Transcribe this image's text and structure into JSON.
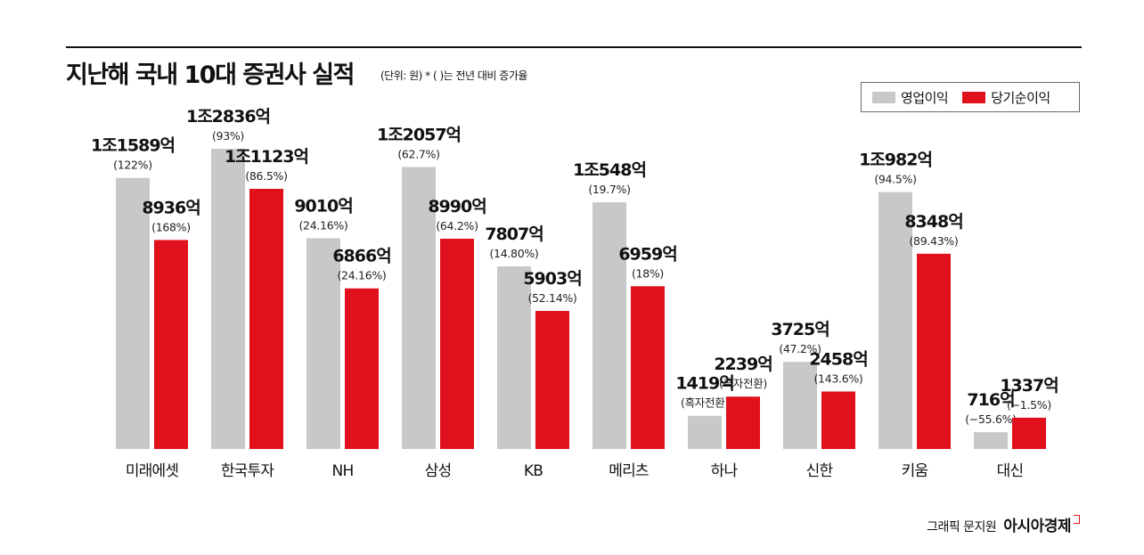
{
  "header": {
    "title": "지난해 국내 10대 증권사 실적",
    "unit_note": "(단위: 원)  * ( )는 전년 대비 증가율"
  },
  "legend": {
    "items": [
      {
        "label": "영업이익",
        "color": "#c8c8ca"
      },
      {
        "label": "당기순이익",
        "color": "#e0111c"
      }
    ]
  },
  "footer": {
    "credit": "그래픽 문지원",
    "brand": "아시아경제"
  },
  "chart_data": {
    "type": "bar",
    "title": "지난해 국내 10대 증권사 실적",
    "unit": "원",
    "categories": [
      "미래에셋",
      "한국투자",
      "NH",
      "삼성",
      "KB",
      "메리츠",
      "하나",
      "신한",
      "키움",
      "대신"
    ],
    "series": [
      {
        "name": "영업이익",
        "color": "#c8c8ca",
        "values_eok": [
          11589,
          12836,
          9010,
          12057,
          7807,
          10548,
          1419,
          3725,
          10982,
          716
        ],
        "labels": [
          "1조1589억",
          "1조2836억",
          "9010억",
          "1조2057억",
          "7807억",
          "1조548억",
          "1419억",
          "3725억",
          "1조982억",
          "716억"
        ],
        "changes": [
          "(122%)",
          "(93%)",
          "(24.16%)",
          "(62.7%)",
          "(14.80%)",
          "(19.7%)",
          "(흑자전환)",
          "(47.2%)",
          "(94.5%)",
          "(−55.6%)"
        ]
      },
      {
        "name": "당기순이익",
        "color": "#e0111c",
        "values_eok": [
          8936,
          11123,
          6866,
          8990,
          5903,
          6959,
          2239,
          2458,
          8348,
          1337
        ],
        "labels": [
          "8936억",
          "1조1123억",
          "6866억",
          "8990억",
          "5903억",
          "6959억",
          "2239억",
          "2458억",
          "8348억",
          "1337억"
        ],
        "changes": [
          "(168%)",
          "(86.5%)",
          "(24.16%)",
          "(64.2%)",
          "(52.14%)",
          "(18%)",
          "(흑자전환)",
          "(143.6%)",
          "(89.43%)",
          "(−1.5%)"
        ]
      }
    ],
    "grid": false,
    "legend_position": "top-right"
  }
}
